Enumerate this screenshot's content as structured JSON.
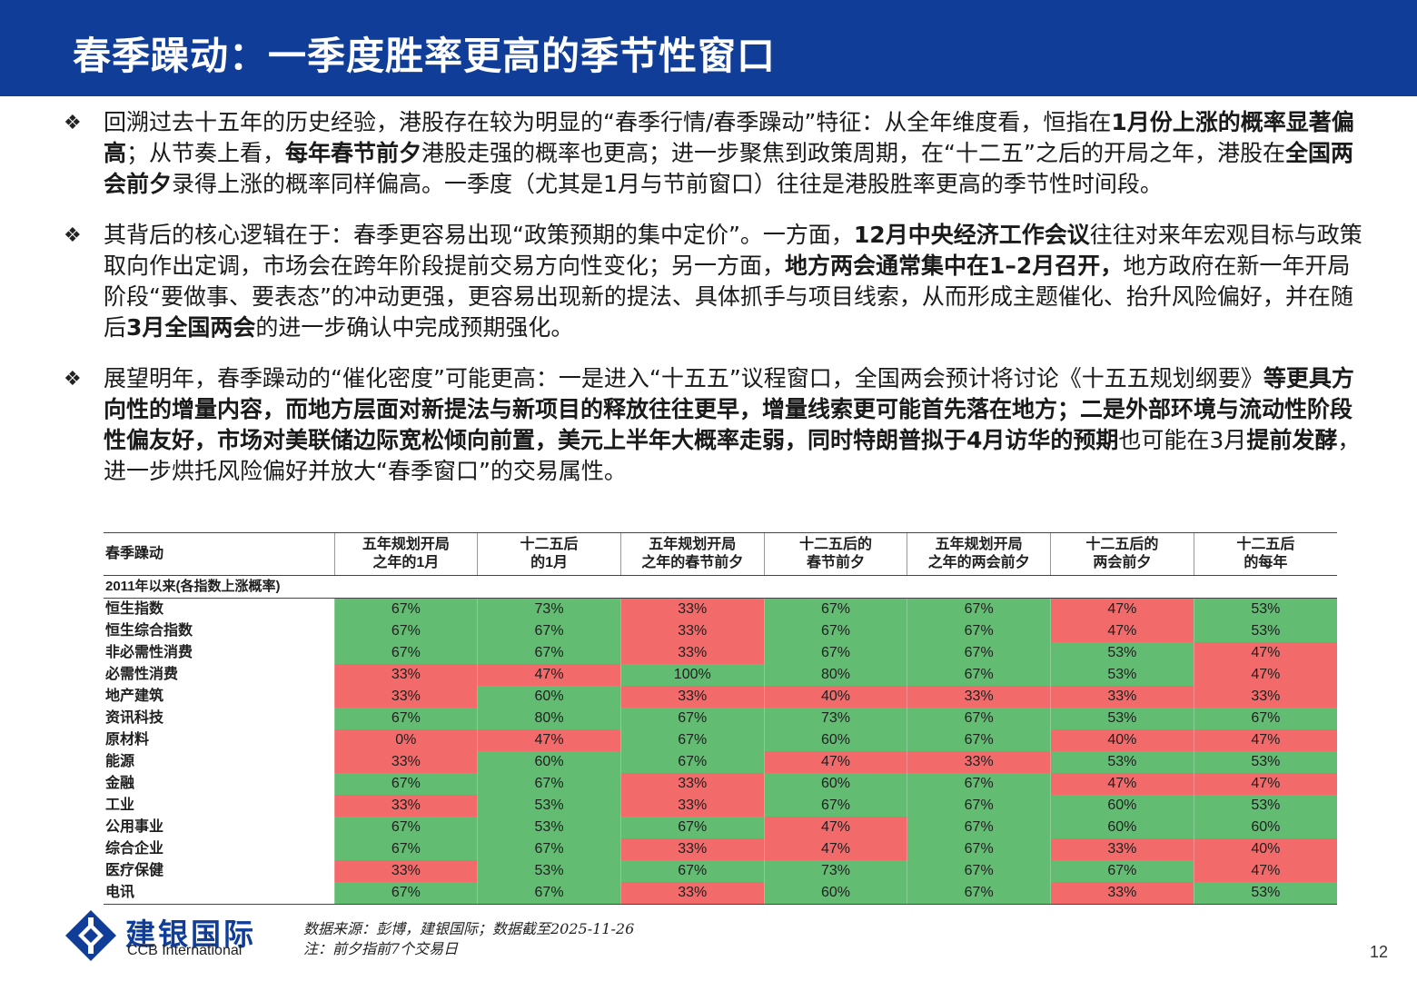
{
  "title": "春季躁动：一季度胜率更高的季节性窗口",
  "bullet_mark": "❖",
  "bullets": [
    {
      "segments": [
        {
          "t": "回溯过去十五年的历史经验，港股存在较为明显的“春季行情/春季躁动”特征：从全年维度看，恒指在",
          "b": false
        },
        {
          "t": "1月份上涨的概率显著偏高",
          "b": true
        },
        {
          "t": "；从节奏上看，",
          "b": false
        },
        {
          "t": "每年春节前夕",
          "b": true
        },
        {
          "t": "港股走强的概率也更高；进一步聚焦到政策周期，在“十二五”之后的开局之年，港股在",
          "b": false
        },
        {
          "t": "全国两会前夕",
          "b": true
        },
        {
          "t": "录得上涨的概率同样偏高。一季度（尤其是1月与节前窗口）往往是港股胜率更高的季节性时间段。",
          "b": false
        }
      ]
    },
    {
      "segments": [
        {
          "t": "其背后的核心逻辑在于：春季更容易出现“政策预期的集中定价”。一方面，",
          "b": false
        },
        {
          "t": "12月中央经济工作会议",
          "b": true
        },
        {
          "t": "往往对来年宏观目标与政策取向作出定调，市场会在跨年阶段提前交易方向性变化；另一方面，",
          "b": false
        },
        {
          "t": "地方两会通常集中在1–2月召开，",
          "b": true
        },
        {
          "t": "地方政府在新一年开局阶段“要做事、要表态”的冲动更强，更容易出现新的提法、具体抓手与项目线索，从而形成主题催化、抬升风险偏好，并在随后",
          "b": false
        },
        {
          "t": "3月全国两会",
          "b": true
        },
        {
          "t": "的进一步确认中完成预期强化。",
          "b": false
        }
      ]
    },
    {
      "segments": [
        {
          "t": "展望明年，春季躁动的“催化密度”可能更高：一是进入“十五五”议程窗口，全国两会预计将讨论《十五五规划纲要》",
          "b": false
        },
        {
          "t": "等更具方向性的增量内容，而地方层面对新提法与新项目的释放往往更早，增量线索更可能首先落在地方；二是外部环境与流动性阶段性偏友好，市场对美联储边际宽松倾向前置，美元上半年大概率走弱，同时特朗普拟于4月访华的预期",
          "b": true
        },
        {
          "t": "也可能在3月",
          "b": false
        },
        {
          "t": "提前发酵",
          "b": true
        },
        {
          "t": "，进一步烘托风险偏好并放大“春季窗口”的交易属性。",
          "b": false
        }
      ]
    }
  ],
  "table": {
    "corner_label": "春季躁动",
    "sub_label": "2011年以来(各指数上涨概率)",
    "columns": [
      [
        "五年规划开局",
        "之年的1月"
      ],
      [
        "十二五后",
        "的1月"
      ],
      [
        "五年规划开局",
        "之年的春节前夕"
      ],
      [
        "十二五后的",
        "春节前夕"
      ],
      [
        "五年规划开局",
        "之年的两会前夕"
      ],
      [
        "十二五后的",
        "两会前夕"
      ],
      [
        "十二五后",
        "的每年"
      ]
    ],
    "rows": [
      {
        "label": "恒生指数",
        "values": [
          "67%",
          "73%",
          "33%",
          "67%",
          "67%",
          "47%",
          "53%"
        ],
        "colors": [
          "g",
          "g",
          "r",
          "g",
          "g",
          "r",
          "g"
        ]
      },
      {
        "label": "恒生综合指数",
        "values": [
          "67%",
          "67%",
          "33%",
          "67%",
          "67%",
          "47%",
          "53%"
        ],
        "colors": [
          "g",
          "g",
          "r",
          "g",
          "g",
          "r",
          "g"
        ]
      },
      {
        "label": "非必需性消费",
        "values": [
          "67%",
          "67%",
          "33%",
          "67%",
          "67%",
          "53%",
          "47%"
        ],
        "colors": [
          "g",
          "g",
          "r",
          "g",
          "g",
          "g",
          "r"
        ]
      },
      {
        "label": "必需性消费",
        "values": [
          "33%",
          "47%",
          "100%",
          "80%",
          "67%",
          "53%",
          "47%"
        ],
        "colors": [
          "r",
          "r",
          "g",
          "g",
          "g",
          "g",
          "r"
        ]
      },
      {
        "label": "地产建筑",
        "values": [
          "33%",
          "60%",
          "33%",
          "40%",
          "33%",
          "33%",
          "33%"
        ],
        "colors": [
          "r",
          "g",
          "r",
          "r",
          "r",
          "r",
          "r"
        ]
      },
      {
        "label": "资讯科技",
        "values": [
          "67%",
          "80%",
          "67%",
          "73%",
          "67%",
          "53%",
          "67%"
        ],
        "colors": [
          "g",
          "g",
          "g",
          "g",
          "g",
          "g",
          "g"
        ]
      },
      {
        "label": "原材料",
        "values": [
          "0%",
          "47%",
          "67%",
          "60%",
          "67%",
          "40%",
          "47%"
        ],
        "colors": [
          "r",
          "r",
          "g",
          "g",
          "g",
          "r",
          "r"
        ]
      },
      {
        "label": "能源",
        "values": [
          "33%",
          "60%",
          "67%",
          "47%",
          "33%",
          "53%",
          "53%"
        ],
        "colors": [
          "r",
          "g",
          "g",
          "r",
          "r",
          "g",
          "g"
        ]
      },
      {
        "label": "金融",
        "values": [
          "67%",
          "67%",
          "33%",
          "60%",
          "67%",
          "47%",
          "47%"
        ],
        "colors": [
          "g",
          "g",
          "r",
          "g",
          "g",
          "r",
          "r"
        ]
      },
      {
        "label": "工业",
        "values": [
          "33%",
          "53%",
          "33%",
          "67%",
          "67%",
          "60%",
          "53%"
        ],
        "colors": [
          "r",
          "g",
          "r",
          "g",
          "g",
          "g",
          "g"
        ]
      },
      {
        "label": "公用事业",
        "values": [
          "67%",
          "53%",
          "67%",
          "47%",
          "67%",
          "60%",
          "60%"
        ],
        "colors": [
          "g",
          "g",
          "g",
          "r",
          "g",
          "g",
          "g"
        ]
      },
      {
        "label": "综合企业",
        "values": [
          "67%",
          "67%",
          "33%",
          "47%",
          "67%",
          "33%",
          "40%"
        ],
        "colors": [
          "g",
          "g",
          "r",
          "r",
          "g",
          "r",
          "r"
        ]
      },
      {
        "label": "医疗保健",
        "values": [
          "33%",
          "53%",
          "67%",
          "73%",
          "67%",
          "67%",
          "47%"
        ],
        "colors": [
          "r",
          "g",
          "g",
          "g",
          "g",
          "g",
          "r"
        ]
      },
      {
        "label": "电讯",
        "values": [
          "67%",
          "67%",
          "33%",
          "60%",
          "67%",
          "33%",
          "53%"
        ],
        "colors": [
          "g",
          "g",
          "r",
          "g",
          "g",
          "r",
          "g"
        ]
      }
    ]
  },
  "logo": {
    "cn": "建银国际",
    "en": "CCB International"
  },
  "notes": {
    "source": "数据来源：彭博，建银国际；数据截至2025-11-26",
    "note": "注：前夕指前7个交易日"
  },
  "page_number": "12",
  "colors": {
    "brand_blue": "#0f3d98",
    "up_green": "#62bc72",
    "down_red": "#f26a6a"
  }
}
